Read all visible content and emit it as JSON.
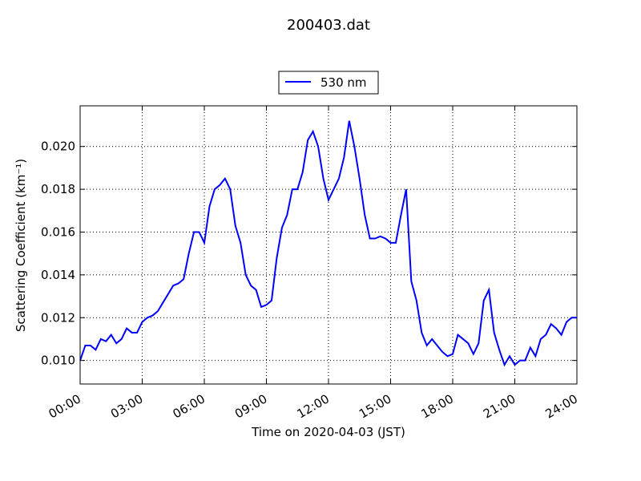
{
  "chart_data": {
    "type": "line",
    "title": "200403.dat",
    "xlabel": "Time on 2020-04-03 (JST)",
    "ylabel": "Scattering Coefficient (km⁻¹)",
    "x": [
      0,
      0.25,
      0.5,
      0.75,
      1,
      1.25,
      1.5,
      1.75,
      2,
      2.25,
      2.5,
      2.75,
      3,
      3.25,
      3.5,
      3.75,
      4,
      4.25,
      4.5,
      4.75,
      5,
      5.25,
      5.5,
      5.75,
      6,
      6.25,
      6.5,
      6.75,
      7,
      7.25,
      7.5,
      7.75,
      8,
      8.25,
      8.5,
      8.75,
      9,
      9.25,
      9.5,
      9.75,
      10,
      10.25,
      10.5,
      10.75,
      11,
      11.25,
      11.5,
      11.75,
      12,
      12.25,
      12.5,
      12.75,
      13,
      13.25,
      13.5,
      13.75,
      14,
      14.25,
      14.5,
      14.75,
      15,
      15.25,
      15.5,
      15.75,
      16,
      16.25,
      16.5,
      16.75,
      17,
      17.25,
      17.5,
      17.75,
      18,
      18.25,
      18.5,
      18.75,
      19,
      19.25,
      19.5,
      19.75,
      20,
      20.25,
      20.5,
      20.75,
      21,
      21.25,
      21.5,
      21.75,
      22,
      22.25,
      22.5,
      22.75,
      23,
      23.25,
      23.5,
      23.75,
      24
    ],
    "series": [
      {
        "name": "530 nm",
        "color": "#0000ff",
        "values": [
          0.01,
          0.0107,
          0.0107,
          0.0105,
          0.011,
          0.0109,
          0.0112,
          0.0108,
          0.011,
          0.0115,
          0.0113,
          0.0113,
          0.0118,
          0.012,
          0.0121,
          0.0123,
          0.0127,
          0.0131,
          0.0135,
          0.0136,
          0.0138,
          0.015,
          0.016,
          0.016,
          0.0155,
          0.0172,
          0.018,
          0.0182,
          0.0185,
          0.018,
          0.0163,
          0.0155,
          0.014,
          0.0135,
          0.0133,
          0.0125,
          0.0126,
          0.0128,
          0.0148,
          0.0162,
          0.0168,
          0.018,
          0.018,
          0.0188,
          0.0203,
          0.0207,
          0.02,
          0.0185,
          0.0175,
          0.018,
          0.0185,
          0.0195,
          0.0212,
          0.02,
          0.0185,
          0.0168,
          0.0157,
          0.0157,
          0.0158,
          0.0157,
          0.0155,
          0.0155,
          0.0168,
          0.018,
          0.0137,
          0.0128,
          0.0113,
          0.0107,
          0.011,
          0.0107,
          0.0104,
          0.0102,
          0.0103,
          0.0112,
          0.011,
          0.0108,
          0.0103,
          0.0108,
          0.0128,
          0.0133,
          0.0113,
          0.0105,
          0.0098,
          0.0102,
          0.0098,
          0.01,
          0.01,
          0.0106,
          0.0102,
          0.011,
          0.0112,
          0.0117,
          0.0115,
          0.0112,
          0.0118,
          0.012,
          0.012
        ]
      }
    ],
    "xlim": [
      0,
      24
    ],
    "xticks": [
      {
        "value": 0,
        "label": "00:00"
      },
      {
        "value": 3,
        "label": "03:00"
      },
      {
        "value": 6,
        "label": "06:00"
      },
      {
        "value": 9,
        "label": "09:00"
      },
      {
        "value": 12,
        "label": "12:00"
      },
      {
        "value": 15,
        "label": "15:00"
      },
      {
        "value": 18,
        "label": "18:00"
      },
      {
        "value": 21,
        "label": "21:00"
      },
      {
        "value": 24,
        "label": "24:00"
      }
    ],
    "ylim": [
      0.0089,
      0.0219
    ],
    "yticks": [
      {
        "value": 0.01,
        "label": "0.010"
      },
      {
        "value": 0.012,
        "label": "0.012"
      },
      {
        "value": 0.014,
        "label": "0.014"
      },
      {
        "value": 0.016,
        "label": "0.016"
      },
      {
        "value": 0.018,
        "label": "0.018"
      },
      {
        "value": 0.02,
        "label": "0.020"
      }
    ],
    "grid": true,
    "legend": "top"
  }
}
